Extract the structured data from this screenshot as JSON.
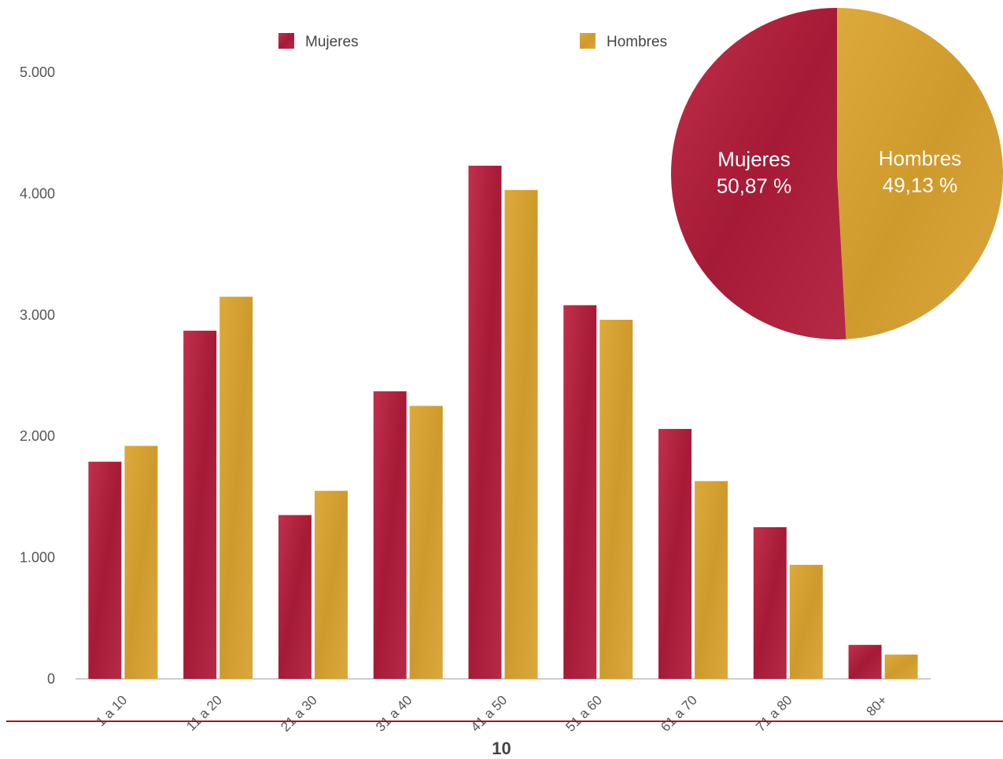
{
  "chart_data": [
    {
      "type": "bar",
      "categories": [
        "1 a 10",
        "11 a 20",
        "21 a 30",
        "31 a 40",
        "41 a 50",
        "51 a 60",
        "61 a 70",
        "71 a 80",
        "80+"
      ],
      "series": [
        {
          "name": "Mujeres",
          "values": [
            1790,
            2870,
            1350,
            2370,
            4230,
            3080,
            2060,
            1250,
            280
          ],
          "color": "#b2203e"
        },
        {
          "name": "Hombres",
          "values": [
            1920,
            3150,
            1550,
            2250,
            4030,
            2960,
            1630,
            940,
            200
          ],
          "color": "#d8a232"
        }
      ],
      "yticks": [
        "0",
        "1.000",
        "2.000",
        "3.000",
        "4.000",
        "5.000"
      ],
      "ylim": [
        0,
        5000
      ],
      "grid": false,
      "legend": "top"
    },
    {
      "type": "pie",
      "slices": [
        {
          "label": "Mujeres",
          "value_label": "50,87 %",
          "value": 50.87,
          "color": "#b2203e"
        },
        {
          "label": "Hombres",
          "value_label": "49,13 %",
          "value": 49.13,
          "color": "#d8a232"
        }
      ]
    }
  ],
  "page_number": "10",
  "accent_line_color": "#a4161a"
}
